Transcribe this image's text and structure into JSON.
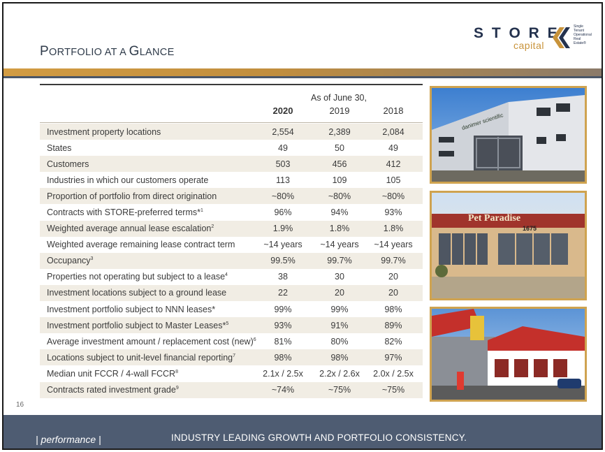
{
  "header": {
    "title_parts": [
      {
        "text": "P",
        "cls": "cap"
      },
      {
        "text": "ORTFOLIO AT A ",
        "cls": "sc"
      },
      {
        "text": "G",
        "cls": "cap"
      },
      {
        "text": "LANCE",
        "cls": "sc"
      }
    ],
    "logo": {
      "word": "S T O R E",
      "sub": "capital",
      "tagline": [
        "Single",
        "Tenant",
        "Operational",
        "Real",
        "Estate®"
      ]
    }
  },
  "table": {
    "as_of_label": "As of June 30,",
    "years": [
      {
        "label": "2020",
        "bold": true
      },
      {
        "label": "2019",
        "bold": false
      },
      {
        "label": "2018",
        "bold": false
      }
    ],
    "rows": [
      {
        "label": "Investment property locations",
        "sup": "",
        "values": [
          "2,554",
          "2,389",
          "2,084"
        ]
      },
      {
        "label": "States",
        "sup": "",
        "values": [
          "49",
          "50",
          "49"
        ]
      },
      {
        "label": "Customers",
        "sup": "",
        "values": [
          "503",
          "456",
          "412"
        ]
      },
      {
        "label": "Industries in which our customers operate",
        "sup": "",
        "values": [
          "113",
          "109",
          "105"
        ]
      },
      {
        "label": "Proportion of portfolio from direct origination",
        "sup": "",
        "values": [
          "~80%",
          "~80%",
          "~80%"
        ]
      },
      {
        "label": "Contracts with STORE-preferred terms*",
        "sup": "1",
        "values": [
          "96%",
          "94%",
          "93%"
        ]
      },
      {
        "label": "Weighted average annual lease escalation",
        "sup": "2",
        "values": [
          "1.9%",
          "1.8%",
          "1.8%"
        ]
      },
      {
        "label": "Weighted average remaining lease contract term",
        "sup": "",
        "values": [
          "~14 years",
          "~14 years",
          "~14 years"
        ]
      },
      {
        "label": "Occupancy",
        "sup": "3",
        "values": [
          "99.5%",
          "99.7%",
          "99.7%"
        ]
      },
      {
        "label": "Properties not operating but subject to a lease",
        "sup": "4",
        "values": [
          "38",
          "30",
          "20"
        ]
      },
      {
        "label": "Investment locations subject to a ground lease",
        "sup": "",
        "values": [
          "22",
          "20",
          "20"
        ]
      },
      {
        "label": "Investment portfolio subject to NNN leases*",
        "sup": "",
        "values": [
          "99%",
          "99%",
          "98%"
        ]
      },
      {
        "label": "Investment portfolio subject to Master Leases*",
        "sup": "5",
        "values": [
          "93%",
          "91%",
          "89%"
        ]
      },
      {
        "label": "Average investment amount / replacement cost (new)",
        "sup": "6",
        "values": [
          "81%",
          "80%",
          "82%"
        ]
      },
      {
        "label": "Locations subject to unit-level financial reporting",
        "sup": "7",
        "values": [
          "98%",
          "98%",
          "97%"
        ]
      },
      {
        "label": "Median unit FCCR / 4-wall FCCR",
        "sup": "8",
        "values": [
          "2.1x / 2.5x",
          "2.2x / 2.6x",
          "2.0x / 2.5x"
        ]
      },
      {
        "label": "Contracts rated investment grade",
        "sup": "9",
        "values": [
          "~74%",
          "~75%",
          "~75%"
        ]
      }
    ]
  },
  "photos": {
    "p1_sign": "danimer scientific",
    "p2_sign": "Pet Paradise",
    "p2_number": "1675"
  },
  "page_number": "16",
  "footer": {
    "category": "| performance |",
    "slogan": "INDUSTRY LEADING GROWTH AND PORTFOLIO CONSISTENCY."
  }
}
